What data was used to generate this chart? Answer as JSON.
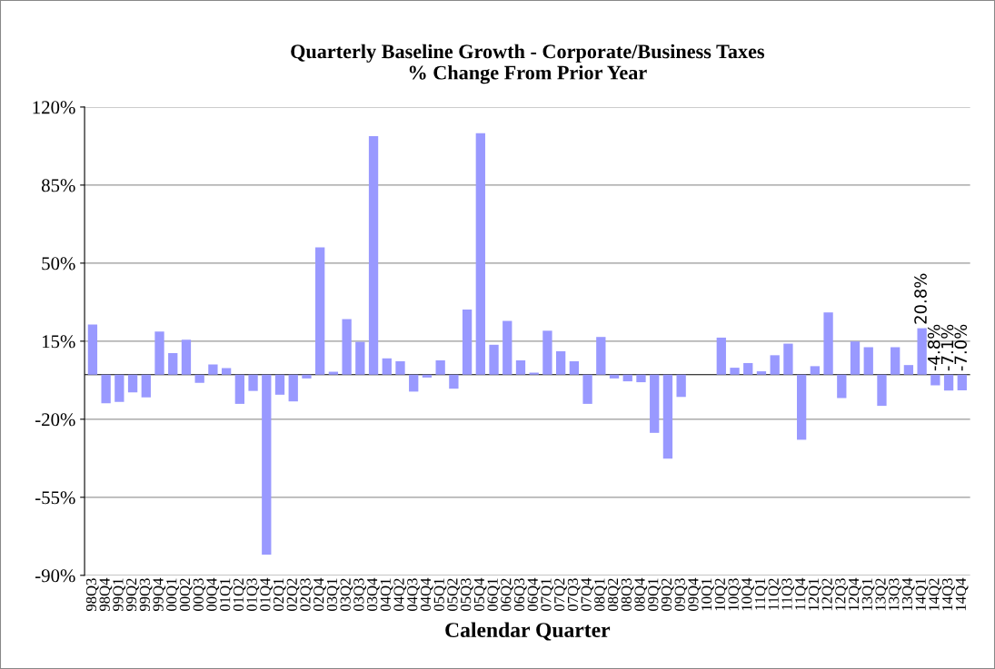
{
  "chart_data": {
    "type": "bar",
    "title": "Quarterly Baseline Growth - Corporate/Business Taxes\n% Change From Prior Year",
    "xlabel": "Calendar Quarter",
    "categories": [
      "98Q3",
      "98Q4",
      "99Q1",
      "99Q2",
      "99Q3",
      "99Q4",
      "00Q1",
      "00Q2",
      "00Q3",
      "00Q4",
      "01Q1",
      "01Q2",
      "01Q3",
      "01Q4",
      "02Q1",
      "02Q2",
      "02Q3",
      "02Q4",
      "03Q1",
      "03Q2",
      "03Q3",
      "03Q4",
      "04Q1",
      "04Q2",
      "04Q3",
      "04Q4",
      "05Q1",
      "05Q2",
      "05Q3",
      "05Q4",
      "06Q1",
      "06Q2",
      "06Q3",
      "06Q4",
      "07Q1",
      "07Q2",
      "07Q3",
      "07Q4",
      "08Q1",
      "08Q2",
      "08Q3",
      "08Q4",
      "09Q1",
      "09Q2",
      "09Q3",
      "09Q4",
      "10Q1",
      "10Q2",
      "10Q3",
      "10Q4",
      "11Q1",
      "11Q2",
      "11Q3",
      "11Q4",
      "12Q1",
      "12Q2",
      "12Q3",
      "12Q4",
      "13Q1",
      "13Q2",
      "13Q3",
      "13Q4",
      "14Q1",
      "14Q2",
      "14Q3",
      "14Q4"
    ],
    "values": [
      22.5,
      -12.8,
      -12.2,
      -8,
      -10.2,
      19.3,
      9.7,
      15.7,
      -3.7,
      4.6,
      2.9,
      -13.1,
      -7.3,
      -80.7,
      -9,
      -12,
      -1.7,
      57.1,
      1.3,
      24.9,
      14.7,
      106.9,
      7.3,
      6.0,
      -7.6,
      -1.3,
      6.4,
      -6.3,
      29.2,
      108.3,
      13.4,
      24.1,
      6.4,
      0.9,
      19.7,
      10.5,
      6.0,
      -13.1,
      16.9,
      -1.7,
      -3.0,
      -3.4,
      -26.1,
      -37.7,
      -10,
      0,
      0,
      16.6,
      3.1,
      5.2,
      1.5,
      8.7,
      13.9,
      -29.2,
      3.8,
      27.9,
      -10.5,
      14.9,
      12.3,
      -14,
      12.3,
      4.3,
      20.8,
      -4.8,
      -7.1,
      -7.0
    ],
    "value_labels": [
      null,
      null,
      null,
      null,
      null,
      null,
      null,
      null,
      null,
      null,
      null,
      null,
      null,
      null,
      null,
      null,
      null,
      null,
      null,
      null,
      null,
      null,
      null,
      null,
      null,
      null,
      null,
      null,
      null,
      null,
      null,
      null,
      null,
      null,
      null,
      null,
      null,
      null,
      null,
      null,
      null,
      null,
      null,
      null,
      null,
      null,
      null,
      null,
      null,
      null,
      null,
      null,
      null,
      null,
      null,
      null,
      null,
      null,
      null,
      null,
      null,
      null,
      "20.8%",
      "-4.8%",
      "-7.1%",
      "-7.0%"
    ],
    "color": "#9999ff",
    "ylim": [
      -90,
      120
    ],
    "yticks": [
      {
        "value": -90,
        "label": "-90%"
      },
      {
        "value": -55,
        "label": "-55%"
      },
      {
        "value": -20,
        "label": "-20%"
      },
      {
        "value": 15,
        "label": "15%"
      },
      {
        "value": 50,
        "label": "50%"
      },
      {
        "value": 85,
        "label": "85%"
      },
      {
        "value": 120,
        "label": "120%"
      }
    ],
    "grid": "y"
  }
}
